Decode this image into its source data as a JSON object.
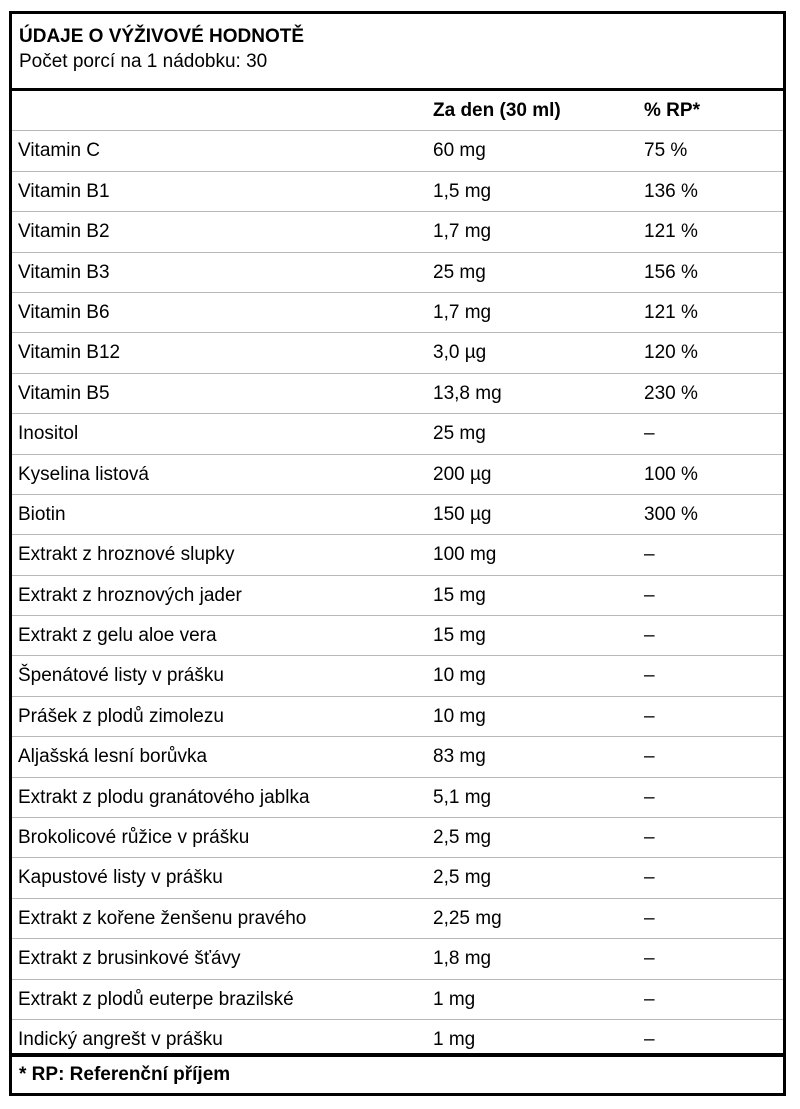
{
  "header": {
    "title": "ÚDAJE O VÝŽIVOVÉ HODNOTĚ",
    "subtitle": "Počet porcí na 1 nádobku: 30"
  },
  "table": {
    "columns": [
      "",
      "Za den (30 ml)",
      "% RP*"
    ],
    "rows": [
      [
        "Vitamin C",
        "60 mg",
        "75 %"
      ],
      [
        "Vitamin B1",
        "1,5 mg",
        "136 %"
      ],
      [
        "Vitamin B2",
        "1,7 mg",
        "121 %"
      ],
      [
        "Vitamin B3",
        "25 mg",
        "156 %"
      ],
      [
        "Vitamin B6",
        "1,7 mg",
        "121 %"
      ],
      [
        "Vitamin B12",
        "3,0 µg",
        "120 %"
      ],
      [
        "Vitamin B5",
        "13,8 mg",
        "230 %"
      ],
      [
        "Inositol",
        "25 mg",
        "–"
      ],
      [
        "Kyselina listová",
        "200 µg",
        "100 %"
      ],
      [
        "Biotin",
        "150 µg",
        "300 %"
      ],
      [
        "Extrakt z hroznové slupky",
        "100 mg",
        "–"
      ],
      [
        "Extrakt z hroznových jader",
        "15 mg",
        "–"
      ],
      [
        "Extrakt z gelu aloe vera",
        "15 mg",
        "–"
      ],
      [
        "Špenátové listy v prášku",
        "10 mg",
        "–"
      ],
      [
        "Prášek z plodů zimolezu",
        "10 mg",
        "–"
      ],
      [
        "Aljašská lesní borůvka",
        "83 mg",
        "–"
      ],
      [
        "Extrakt z plodu granátového jablka",
        "5,1 mg",
        "–"
      ],
      [
        "Brokolicové růžice v prášku",
        "2,5 mg",
        "–"
      ],
      [
        "Kapustové listy v prášku",
        "2,5 mg",
        "–"
      ],
      [
        "Extrakt z kořene ženšenu pravého",
        "2,25 mg",
        "–"
      ],
      [
        "Extrakt z brusinkové šťávy",
        "1,8 mg",
        "–"
      ],
      [
        "Extrakt z plodů euterpe brazilské",
        "1 mg",
        "–"
      ],
      [
        "Indický angrešt v prášku",
        "1 mg",
        "–"
      ]
    ]
  },
  "footer": {
    "note": "* RP: Referenční příjem"
  }
}
